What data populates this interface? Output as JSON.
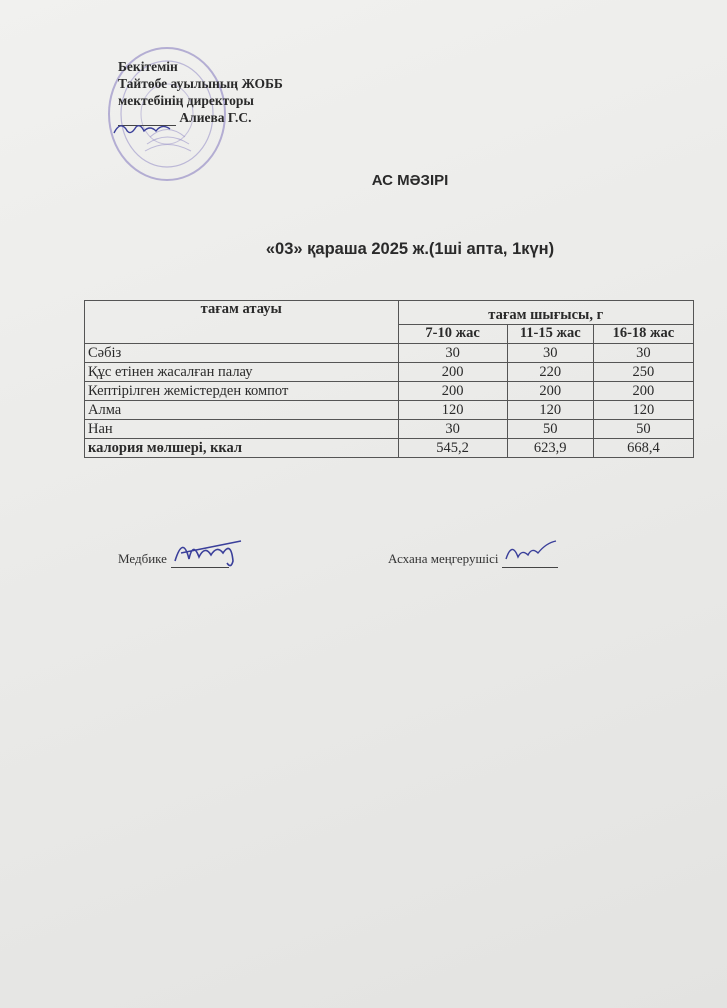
{
  "approval": {
    "line1": "Бекітемін",
    "line2": "Тайтөбе ауылының ЖОББ",
    "line3": "мектебінің директоры",
    "name": "Алиева Г.С."
  },
  "title": "АС МӘЗІРІ",
  "date_line": "«03» қараша 2025 ж.(1ші апта, 1күн)",
  "table": {
    "col_name": "тағам атауы",
    "col_group": "тағам шығысы, г",
    "age_groups": [
      "7-10 жас",
      "11-15 жас",
      "16-18 жас"
    ],
    "rows": [
      {
        "name": "Сәбіз",
        "values": [
          "30",
          "30",
          "30"
        ]
      },
      {
        "name": "Құс етінен жасалған палау",
        "values": [
          "200",
          "220",
          "250"
        ]
      },
      {
        "name": "Кептірілген жемістерден компот",
        "values": [
          "200",
          "200",
          "200"
        ]
      },
      {
        "name": "Алма",
        "values": [
          "120",
          "120",
          "120"
        ]
      },
      {
        "name": "Нан",
        "values": [
          "30",
          "50",
          "50"
        ]
      }
    ],
    "total": {
      "name": "калория мөлшері, ккал",
      "values": [
        "545,2",
        "623,9",
        "668,4"
      ]
    }
  },
  "signatures": {
    "nurse_label": "Медбике",
    "canteen_label": "Асхана меңгерушісі"
  },
  "colors": {
    "stamp": "#8c84c0",
    "signature": "#3a3f9a"
  }
}
